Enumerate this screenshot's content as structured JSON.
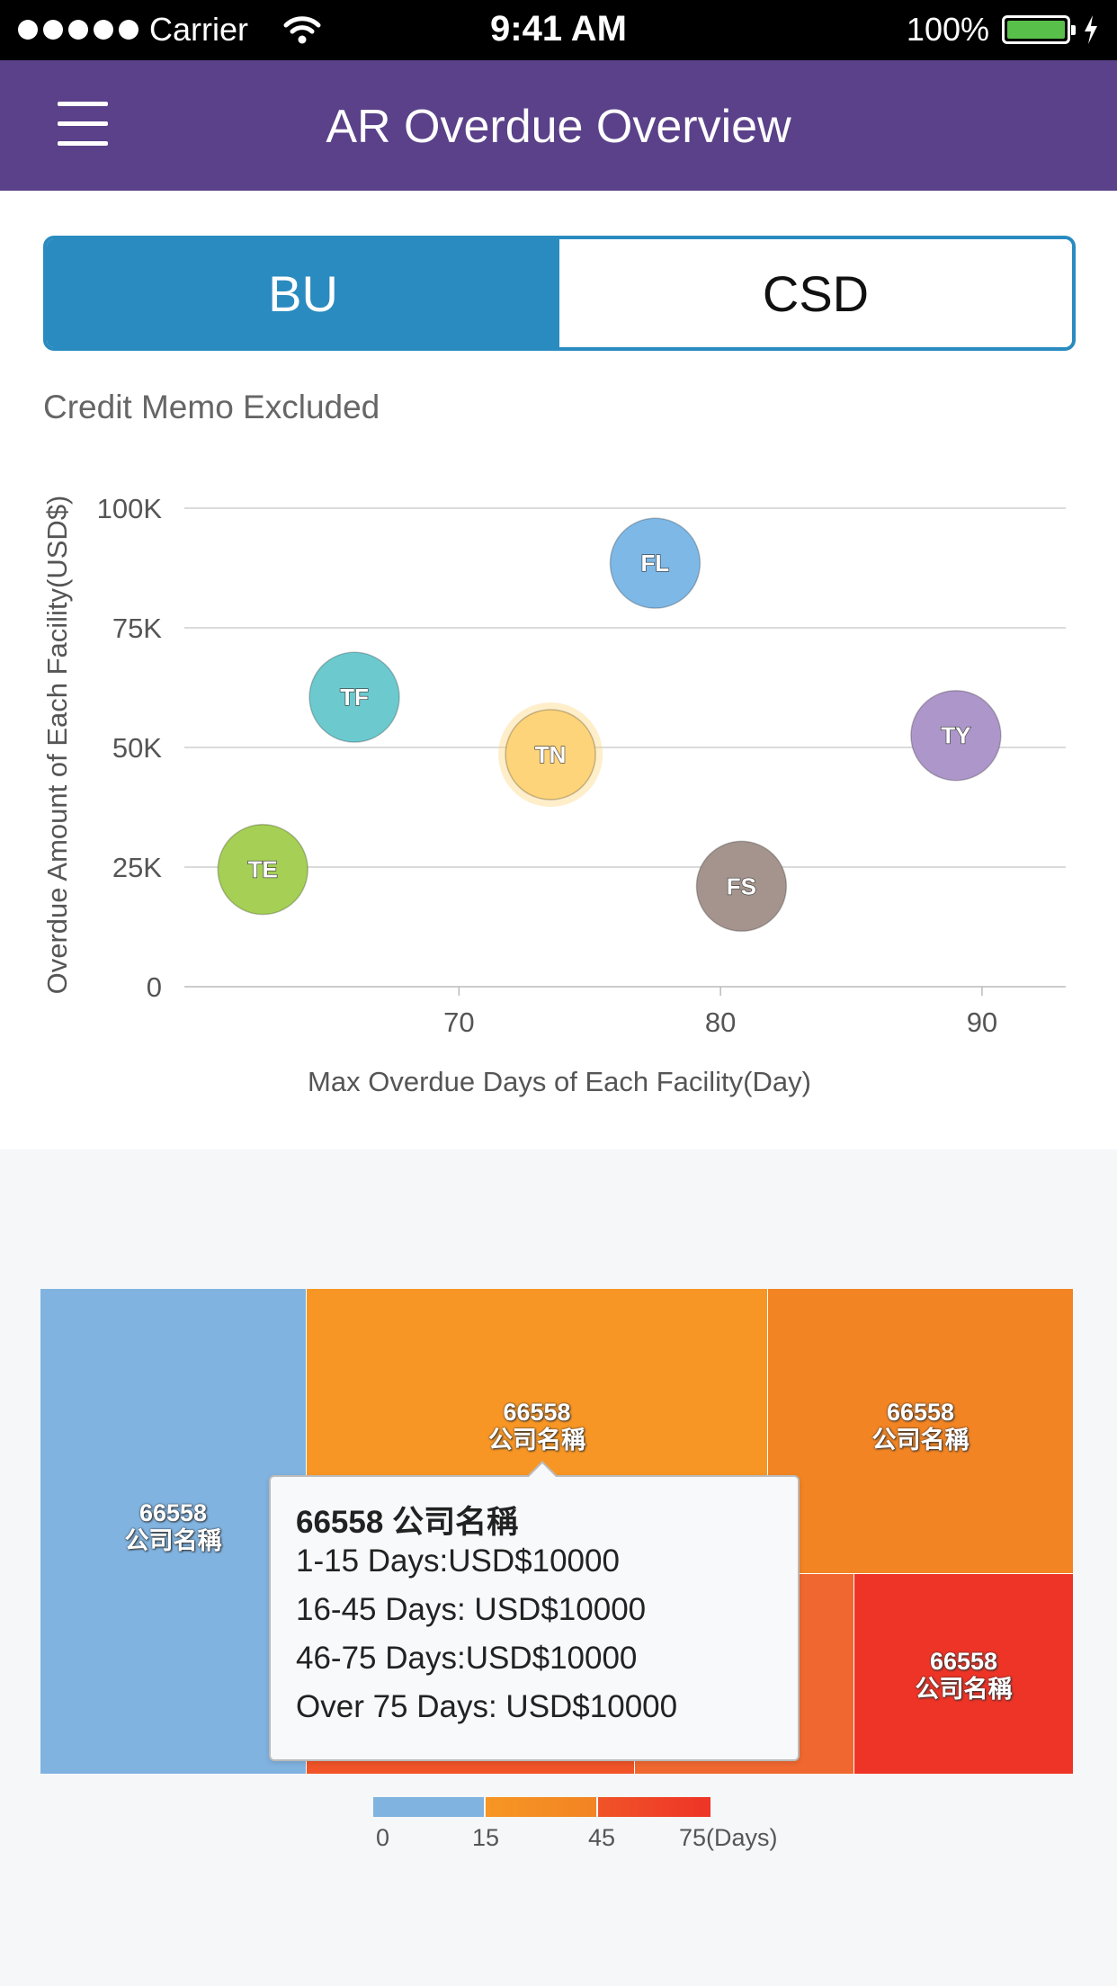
{
  "status_bar": {
    "carrier": "Carrier",
    "time": "9:41 AM",
    "battery": "100%"
  },
  "header": {
    "title": "AR Overdue Overview"
  },
  "segment": {
    "left": "BU",
    "right": "CSD",
    "selected": "BU"
  },
  "memo": "Credit Memo Excluded",
  "chart_data": {
    "type": "scatter",
    "title": "",
    "xlabel": "Max Overdue Days of Each Facility(Day)",
    "ylabel": "Overdue Amount of Each Facility(USD$)",
    "xlim": [
      59.5,
      93.2
    ],
    "ylim": [
      0,
      100000
    ],
    "x_ticks": [
      70,
      80,
      90
    ],
    "y_ticks": [
      0,
      25000,
      50000,
      75000,
      100000
    ],
    "y_tick_labels": [
      "0",
      "25K",
      "50K",
      "75K",
      "100K"
    ],
    "grid": true,
    "series": [
      {
        "label": "TE",
        "x": 62.5,
        "y": 24500,
        "color": "#a5cf55"
      },
      {
        "label": "TF",
        "x": 66.0,
        "y": 60500,
        "color": "#6ccacf"
      },
      {
        "label": "TN",
        "x": 73.5,
        "y": 48500,
        "color": "#fdd47a",
        "highlighted": true
      },
      {
        "label": "FL",
        "x": 77.5,
        "y": 88500,
        "color": "#7eb8e6"
      },
      {
        "label": "FS",
        "x": 80.8,
        "y": 21000,
        "color": "#a4948d"
      },
      {
        "label": "TY",
        "x": 89.0,
        "y": 52500,
        "color": "#ad96c9"
      }
    ]
  },
  "treemap": {
    "cells": [
      {
        "id": "66558",
        "name": "公司名稱",
        "color": "#80b3e0"
      },
      {
        "id": "66558",
        "name": "公司名稱",
        "color": "#f79624"
      },
      {
        "id": "66558",
        "name": "公司名稱",
        "color": "#f28423"
      },
      {
        "id": "",
        "name": "",
        "color": "#f06830"
      },
      {
        "id": "",
        "name": "",
        "color": "#f05428"
      },
      {
        "id": "66558",
        "name": "公司名稱",
        "color": "#ee3427"
      }
    ],
    "tooltip": {
      "id": "66558",
      "name": "公司名稱",
      "lines": [
        "1-15 Days:USD$10000",
        "16-45 Days: USD$10000",
        "46-75 Days:USD$10000",
        "Over 75 Days: USD$10000"
      ]
    },
    "legend": {
      "ticks": [
        "0",
        "15",
        "45",
        "75(Days)"
      ],
      "colors": [
        "#80b3e0",
        "#f79624",
        "#f05428"
      ]
    }
  }
}
